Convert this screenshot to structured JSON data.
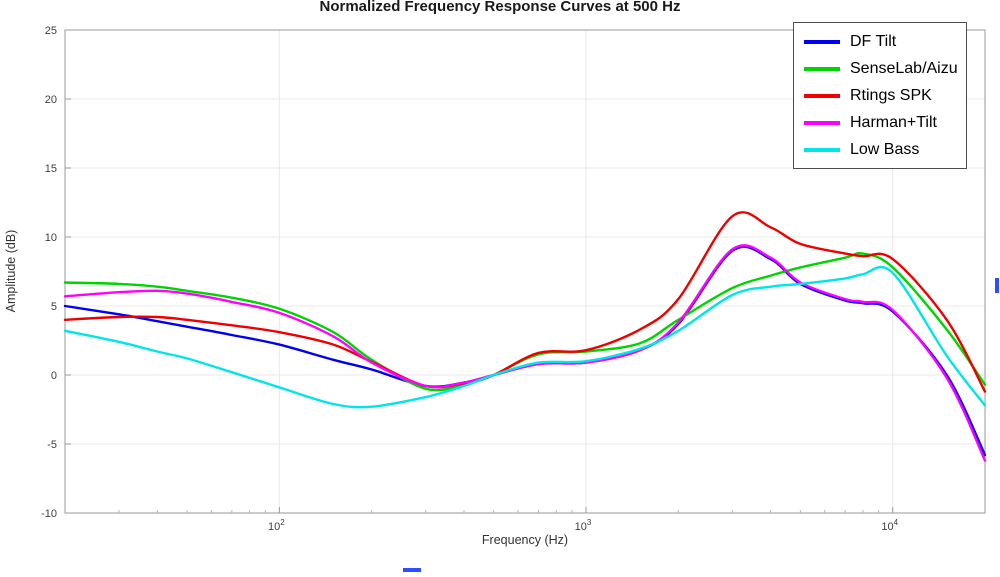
{
  "chart_data": {
    "type": "line",
    "title": "Normalized Frequency Response Curves at 500 Hz",
    "xlabel": "Frequency (Hz)",
    "ylabel": "Amplitude (dB)",
    "x_scale": "log",
    "xlim": [
      20,
      20000
    ],
    "ylim": [
      -10,
      25
    ],
    "yticks": [
      -10,
      -5,
      0,
      5,
      10,
      15,
      20,
      25
    ],
    "xticks": [
      {
        "value": 100,
        "base": "10",
        "exp": "2"
      },
      {
        "value": 1000,
        "base": "10",
        "exp": "3"
      },
      {
        "value": 10000,
        "base": "10",
        "exp": "4"
      }
    ],
    "grid": true,
    "legend_position": "top-right",
    "x": [
      20,
      30,
      40,
      50,
      70,
      100,
      150,
      200,
      300,
      400,
      500,
      700,
      1000,
      1500,
      2000,
      3000,
      4000,
      5000,
      7000,
      8000,
      10000,
      15000,
      20000
    ],
    "series": [
      {
        "name": "DF Tilt",
        "color": "#0000ee",
        "values": [
          5.0,
          4.4,
          3.9,
          3.5,
          2.9,
          2.2,
          1.1,
          0.4,
          -0.8,
          -0.55,
          0.0,
          0.8,
          0.9,
          1.8,
          3.7,
          9.0,
          8.4,
          6.6,
          5.4,
          5.2,
          4.6,
          0.0,
          -5.8
        ]
      },
      {
        "name": "SenseLab/Aizu",
        "color": "#00d400",
        "values": [
          6.7,
          6.6,
          6.4,
          6.1,
          5.6,
          4.8,
          3.1,
          1.1,
          -1.0,
          -0.7,
          0.0,
          1.5,
          1.7,
          2.3,
          4.0,
          6.3,
          7.2,
          7.8,
          8.5,
          8.8,
          7.8,
          3.3,
          -0.7
        ]
      },
      {
        "name": "Rtings SPK",
        "color": "#ee0000",
        "values": [
          4.0,
          4.2,
          4.2,
          4.0,
          3.6,
          3.1,
          2.2,
          0.95,
          -0.8,
          -0.6,
          0.0,
          1.6,
          1.8,
          3.3,
          5.5,
          11.5,
          10.7,
          9.5,
          8.8,
          8.6,
          8.4,
          4.0,
          -1.2
        ]
      },
      {
        "name": "Harman+Tilt",
        "color": "#ff00ff",
        "values": [
          5.7,
          6.0,
          6.1,
          5.9,
          5.3,
          4.5,
          2.8,
          0.9,
          -0.8,
          -0.55,
          0.0,
          0.8,
          0.9,
          1.8,
          3.8,
          9.1,
          8.5,
          6.7,
          5.5,
          5.3,
          4.7,
          -0.2,
          -6.2
        ]
      },
      {
        "name": "Low Bass",
        "color": "#00e5e5",
        "values": [
          3.2,
          2.4,
          1.7,
          1.2,
          0.2,
          -0.9,
          -2.1,
          -2.3,
          -1.6,
          -0.8,
          0.0,
          0.9,
          1.0,
          1.9,
          3.2,
          5.8,
          6.4,
          6.6,
          7.0,
          7.3,
          7.4,
          1.4,
          -2.2
        ]
      }
    ]
  }
}
